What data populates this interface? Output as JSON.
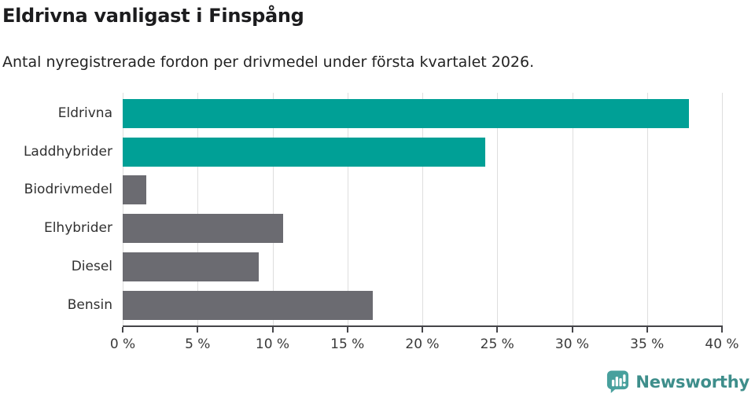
{
  "header": {
    "title": "Eldrivna vanligast i Finspång",
    "subtitle": "Antal nyregistrerade fordon per drivmedel under första kvartalet 2026."
  },
  "chart_data": {
    "type": "bar",
    "orientation": "horizontal",
    "title": "Eldrivna vanligast i Finspång",
    "subtitle": "Antal nyregistrerade fordon per drivmedel under första kvartalet 2026.",
    "categories": [
      "Eldrivna",
      "Laddhybrider",
      "Biodrivmedel",
      "Elhybrider",
      "Diesel",
      "Bensin"
    ],
    "values": [
      37.8,
      24.2,
      1.6,
      10.7,
      9.1,
      16.7
    ],
    "unit": "%",
    "xlim": [
      0,
      40
    ],
    "xticks": [
      0,
      5,
      10,
      15,
      20,
      25,
      30,
      35,
      40
    ],
    "xtick_labels": [
      "0 %",
      "5 %",
      "10 %",
      "15 %",
      "20 %",
      "25 %",
      "30 %",
      "35 %",
      "40 %"
    ],
    "grid": true,
    "legend": "none",
    "colors": {
      "highlight": "#00a096",
      "default": "#6b6b71",
      "gridline": "#dedede",
      "axis": "#454549"
    },
    "bar_color_keys": [
      "highlight",
      "highlight",
      "default",
      "default",
      "default",
      "default"
    ]
  },
  "footer": {
    "brand": "Newsworthy",
    "brand_color": "#3e8e8b",
    "icon": "bar-chart-speech-bubble-icon",
    "icon_color": "#48a09d"
  }
}
